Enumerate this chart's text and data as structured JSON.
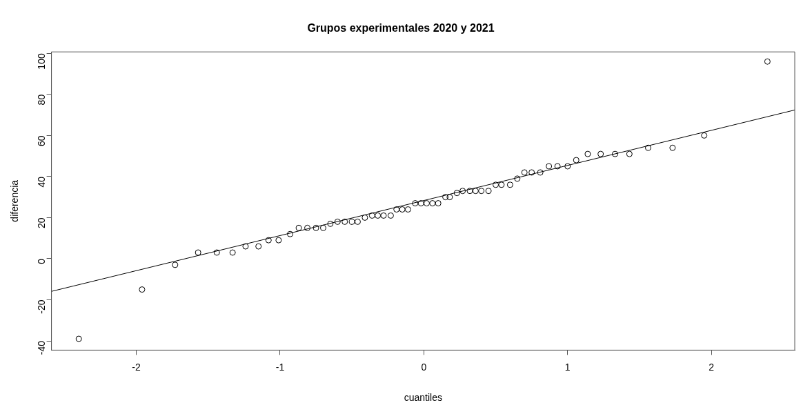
{
  "chart_data": {
    "type": "scatter",
    "title": "Grupos experimentales 2020 y 2021",
    "xlabel": "cuantiles",
    "ylabel": "diferencia",
    "xlim": [
      -2.59,
      2.58
    ],
    "ylim": [
      -44.5,
      100.7
    ],
    "xticks": [
      -2,
      -1,
      0,
      1,
      2
    ],
    "yticks": [
      -40,
      -20,
      0,
      20,
      40,
      60,
      80,
      100
    ],
    "grid": false,
    "legend": false,
    "series": [
      {
        "type": "scatter",
        "marker": "circle",
        "color": "#000000",
        "x": [
          -2.4,
          -1.96,
          -1.73,
          -1.57,
          -1.44,
          -1.33,
          -1.24,
          -1.15,
          -1.08,
          -1.01,
          -0.93,
          -0.87,
          -0.81,
          -0.75,
          -0.7,
          -0.65,
          -0.6,
          -0.55,
          -0.5,
          -0.46,
          -0.41,
          -0.36,
          -0.32,
          -0.28,
          -0.23,
          -0.19,
          -0.15,
          -0.11,
          -0.06,
          -0.02,
          0.02,
          0.06,
          0.1,
          0.15,
          0.18,
          0.23,
          0.27,
          0.32,
          0.36,
          0.4,
          0.45,
          0.5,
          0.54,
          0.6,
          0.65,
          0.7,
          0.75,
          0.81,
          0.87,
          0.93,
          1.0,
          1.06,
          1.14,
          1.23,
          1.33,
          1.43,
          1.56,
          1.73,
          1.95,
          2.39
        ],
        "values": [
          -39,
          -15,
          -3,
          3,
          3,
          3,
          6,
          6,
          9,
          9,
          12,
          15,
          15,
          15,
          15,
          17,
          18,
          18,
          18,
          18,
          20,
          21,
          21,
          21,
          21,
          24,
          24,
          24,
          27,
          27,
          27,
          27,
          27,
          30,
          30,
          32,
          33,
          33,
          33,
          33,
          33,
          36,
          36,
          36,
          39,
          42,
          42,
          42,
          45,
          45,
          45,
          48,
          51,
          51,
          51,
          51,
          54,
          54,
          60,
          96
        ]
      },
      {
        "type": "line",
        "marker": "none",
        "line_style": "solid",
        "color": "#000000",
        "x": [
          -2.59,
          2.58
        ],
        "values": [
          -15.9,
          72.4
        ]
      }
    ]
  }
}
